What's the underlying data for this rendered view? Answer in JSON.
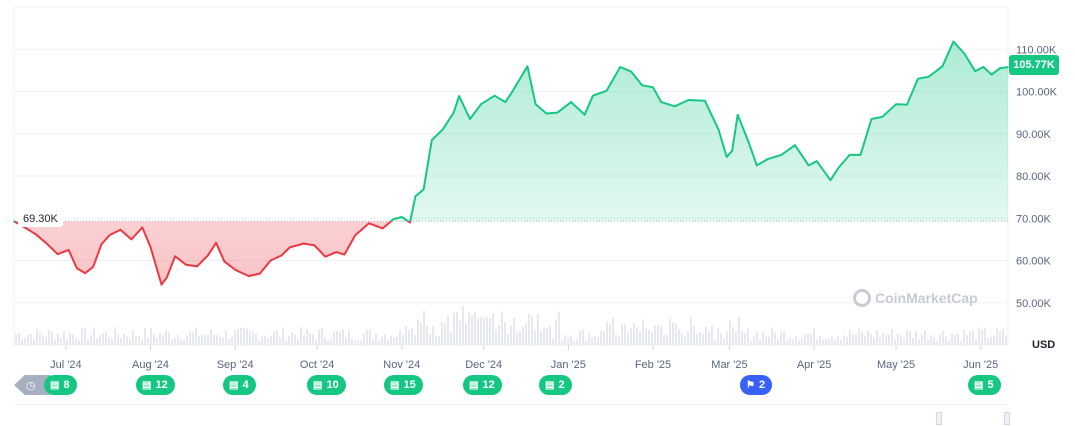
{
  "chart_data": {
    "type": "area",
    "currency": "USD",
    "current_price_label": "105.77K",
    "open_price_label": "69.30K",
    "baseline": 69300,
    "ylim": [
      40000,
      120000
    ],
    "y_ticks": [
      {
        "value": 50000,
        "label": "50.00K"
      },
      {
        "value": 60000,
        "label": "60.00K"
      },
      {
        "value": 70000,
        "label": "70.00K"
      },
      {
        "value": 80000,
        "label": "80.00K"
      },
      {
        "value": 90000,
        "label": "90.00K"
      },
      {
        "value": 100000,
        "label": "100.00K"
      },
      {
        "value": 110000,
        "label": "110.00K"
      }
    ],
    "xlim": [
      "2024-06-12",
      "2025-06-11"
    ],
    "x_ticks": [
      {
        "date": "2024-07-01",
        "label": "Jul '24"
      },
      {
        "date": "2024-08-01",
        "label": "Aug '24"
      },
      {
        "date": "2024-09-01",
        "label": "Sep '24"
      },
      {
        "date": "2024-10-01",
        "label": "Oct '24"
      },
      {
        "date": "2024-11-01",
        "label": "Nov '24"
      },
      {
        "date": "2024-12-01",
        "label": "Dec '24"
      },
      {
        "date": "2025-01-01",
        "label": "Jan '25"
      },
      {
        "date": "2025-02-01",
        "label": "Feb '25"
      },
      {
        "date": "2025-03-01",
        "label": "Mar '25"
      },
      {
        "date": "2025-04-01",
        "label": "Apr '25"
      },
      {
        "date": "2025-05-01",
        "label": "May '25"
      },
      {
        "date": "2025-06-01",
        "label": "Jun '25"
      }
    ],
    "series": [
      {
        "x": [
          "2024-06-12",
          "2024-06-16",
          "2024-06-20",
          "2024-06-24",
          "2024-06-28",
          "2024-07-02",
          "2024-07-05",
          "2024-07-08",
          "2024-07-11",
          "2024-07-14",
          "2024-07-17",
          "2024-07-21",
          "2024-07-25",
          "2024-07-29",
          "2024-08-01",
          "2024-08-05",
          "2024-08-07",
          "2024-08-10",
          "2024-08-14",
          "2024-08-18",
          "2024-08-22",
          "2024-08-25",
          "2024-08-28",
          "2024-09-01",
          "2024-09-06",
          "2024-09-10",
          "2024-09-14",
          "2024-09-18",
          "2024-09-21",
          "2024-09-26",
          "2024-09-30",
          "2024-10-04",
          "2024-10-08",
          "2024-10-11",
          "2024-10-15",
          "2024-10-20",
          "2024-10-25",
          "2024-10-29",
          "2024-11-01",
          "2024-11-04",
          "2024-11-06",
          "2024-11-09",
          "2024-11-12",
          "2024-11-16",
          "2024-11-20",
          "2024-11-22",
          "2024-11-26",
          "2024-11-30",
          "2024-12-05",
          "2024-12-09",
          "2024-12-12",
          "2024-12-17",
          "2024-12-20",
          "2024-12-24",
          "2024-12-28",
          "2025-01-02",
          "2025-01-07",
          "2025-01-10",
          "2025-01-15",
          "2025-01-20",
          "2025-01-24",
          "2025-01-28",
          "2025-02-01",
          "2025-02-04",
          "2025-02-09",
          "2025-02-14",
          "2025-02-20",
          "2025-02-25",
          "2025-02-28",
          "2025-03-02",
          "2025-03-04",
          "2025-03-08",
          "2025-03-11",
          "2025-03-15",
          "2025-03-20",
          "2025-03-25",
          "2025-03-30",
          "2025-04-02",
          "2025-04-07",
          "2025-04-10",
          "2025-04-14",
          "2025-04-18",
          "2025-04-22",
          "2025-04-26",
          "2025-05-01",
          "2025-05-05",
          "2025-05-09",
          "2025-05-13",
          "2025-05-18",
          "2025-05-22",
          "2025-05-26",
          "2025-05-30",
          "2025-06-02",
          "2025-06-05",
          "2025-06-08",
          "2025-06-11"
        ],
        "values": [
          69300,
          67800,
          66200,
          64000,
          61500,
          62500,
          58200,
          57000,
          58500,
          63800,
          66000,
          67300,
          65000,
          67800,
          63200,
          54300,
          56000,
          61000,
          59000,
          58600,
          61200,
          64200,
          59800,
          57800,
          56300,
          56900,
          60000,
          61200,
          63100,
          64000,
          63600,
          60900,
          62000,
          61400,
          66000,
          68800,
          67600,
          69800,
          70300,
          69000,
          75200,
          76800,
          88500,
          91000,
          95000,
          98900,
          93500,
          97000,
          99000,
          97500,
          100500,
          106000,
          97000,
          94800,
          95000,
          97500,
          94500,
          99000,
          100200,
          105800,
          104700,
          101500,
          101000,
          97500,
          96500,
          98000,
          97800,
          91000,
          84500,
          86000,
          94500,
          88000,
          82500,
          84000,
          85000,
          87300,
          82500,
          83500,
          79000,
          82000,
          85000,
          85000,
          93500,
          94000,
          97000,
          96900,
          103000,
          103500,
          106000,
          111800,
          109000,
          104800,
          105800,
          104000,
          105500,
          105770
        ]
      }
    ],
    "volume_note": "",
    "event_badges": [
      {
        "label": "8",
        "icon": "document-icon",
        "kind": "news"
      },
      {
        "label": "12",
        "icon": "document-icon",
        "kind": "news"
      },
      {
        "label": "4",
        "icon": "document-icon",
        "kind": "news"
      },
      {
        "label": "10",
        "icon": "document-icon",
        "kind": "news"
      },
      {
        "label": "15",
        "icon": "document-icon",
        "kind": "news"
      },
      {
        "label": "12",
        "icon": "document-icon",
        "kind": "news"
      },
      {
        "label": "2",
        "icon": "document-icon",
        "kind": "news"
      },
      {
        "label": "2",
        "icon": "flag-icon",
        "kind": "flag"
      },
      {
        "label": "5",
        "icon": "document-icon",
        "kind": "news"
      }
    ],
    "colors": {
      "up": "#16c784",
      "down": "#ea3943",
      "grid": "#eff2f5",
      "baseline": "#a6b0c3",
      "flag": "#3861fb"
    }
  },
  "watermark": "CoinMarketCap"
}
